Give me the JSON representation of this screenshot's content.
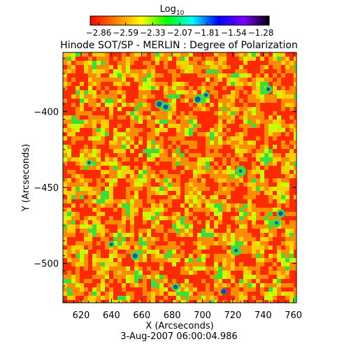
{
  "chart_data": {
    "type": "heatmap",
    "title": "Hinode SOT/SP - MERLIN : Degree of Polarization",
    "colorbar": {
      "label": "Log",
      "label_subscript": "10",
      "tick_labels": [
        "−2.86",
        "−2.59",
        "−2.33",
        "−2.07",
        "−1.81",
        "−1.54",
        "−1.28"
      ],
      "range": [
        -2.86,
        -1.28
      ],
      "colors": [
        "#ff0000",
        "#ff8000",
        "#ffff00",
        "#00ff00",
        "#00ffff",
        "#0000ff",
        "#8000ff",
        "#000000"
      ]
    },
    "xlabel": "X (Arcseconds)",
    "ylabel": "Y (Arcseconds)",
    "xlim": [
      608,
      762
    ],
    "ylim": [
      -526,
      -361
    ],
    "xticks": [
      620,
      640,
      660,
      680,
      700,
      720,
      740,
      760
    ],
    "yticks": [
      -400,
      -450,
      -500
    ],
    "footer": "3-Aug-2007 06:00:04.986",
    "map_palette": {
      "background": "#ff5a10",
      "low": "#ff2a00",
      "mid": "#ff8c00",
      "high": "#ffd000",
      "very_high": "#c8ff00",
      "green": "#3cdc3c",
      "extreme": "#0050c8"
    }
  }
}
